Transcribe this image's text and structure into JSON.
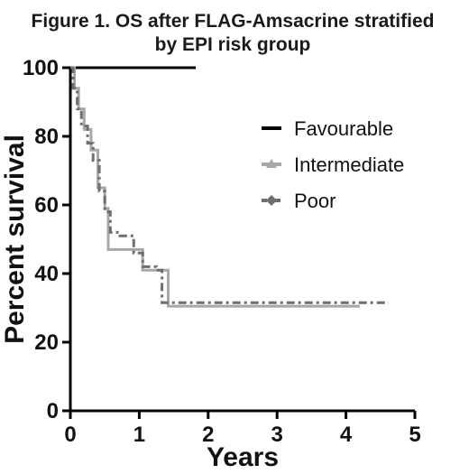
{
  "chart_data": {
    "type": "line",
    "title_line1": "Figure 1. OS after FLAG-Amsacrine stratified",
    "title_line2": "by EPI risk group",
    "xlabel": "Years",
    "ylabel": "Percent survival",
    "xlim": [
      0,
      5
    ],
    "ylim": [
      0,
      100
    ],
    "xticks": [
      "0",
      "1",
      "2",
      "3",
      "4",
      "5"
    ],
    "yticks": [
      "0",
      "20",
      "40",
      "60",
      "80",
      "100"
    ],
    "grid": false,
    "legend_position": "right",
    "step": true,
    "series": [
      {
        "name": "Favourable",
        "color": "#000000",
        "dash": "solid",
        "marker": "none",
        "x": [
          0,
          1.82
        ],
        "y": [
          100,
          100
        ]
      },
      {
        "name": "Intermediate",
        "color": "#a8a8a8",
        "dash": "solid",
        "marker": "triangle",
        "x": [
          0,
          0.06,
          0.12,
          0.2,
          0.3,
          0.4,
          0.5,
          0.55,
          0.9,
          1.05,
          1.42,
          4.2
        ],
        "y": [
          100,
          94,
          88,
          82,
          76,
          65,
          59,
          47,
          47,
          41,
          30.5,
          30.5
        ]
      },
      {
        "name": "Poor",
        "color": "#6e6e6e",
        "dash": "dashdot",
        "marker": "diamond",
        "x": [
          0,
          0.04,
          0.1,
          0.16,
          0.25,
          0.33,
          0.42,
          0.5,
          0.58,
          0.72,
          0.92,
          1.05,
          1.25,
          1.33,
          4.62
        ],
        "y": [
          100,
          94,
          88,
          83,
          78,
          73,
          64,
          58,
          52,
          51,
          46,
          42,
          41,
          31.5,
          31.5
        ]
      }
    ]
  }
}
